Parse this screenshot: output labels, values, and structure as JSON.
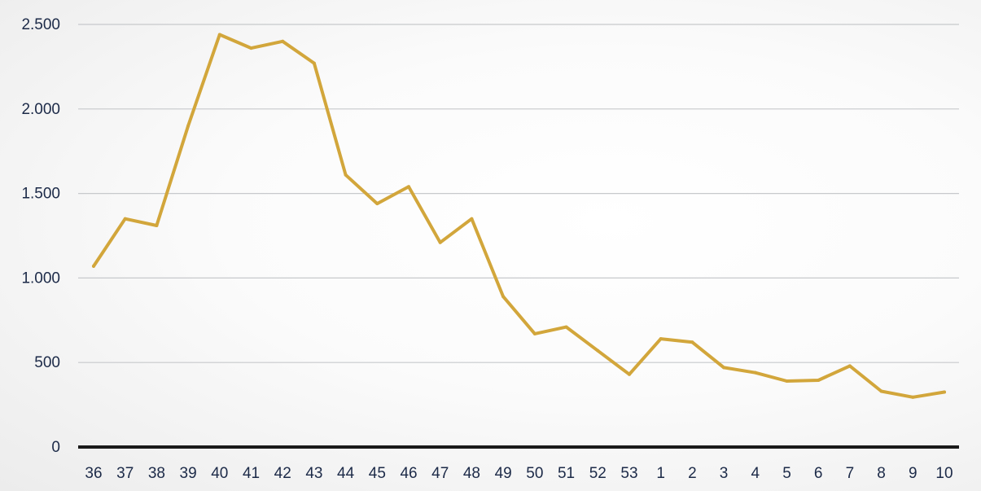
{
  "chart_data": {
    "type": "line",
    "title": "",
    "xlabel": "",
    "ylabel": "",
    "categories": [
      "36",
      "37",
      "38",
      "39",
      "40",
      "41",
      "42",
      "43",
      "44",
      "45",
      "46",
      "47",
      "48",
      "49",
      "50",
      "51",
      "52",
      "53",
      "1",
      "2",
      "3",
      "4",
      "5",
      "6",
      "7",
      "8",
      "9",
      "10"
    ],
    "series": [
      {
        "values": [
          1070,
          1350,
          1310,
          1900,
          2440,
          2360,
          2400,
          2270,
          1610,
          1440,
          1540,
          1210,
          1350,
          890,
          670,
          710,
          570,
          430,
          640,
          620,
          470,
          440,
          390,
          395,
          480,
          330,
          295,
          325
        ],
        "color": "#d2a63b"
      }
    ],
    "ylim": [
      0,
      2500
    ],
    "y_ticks": [
      0,
      500,
      1000,
      1500,
      2000,
      2500
    ],
    "y_tick_labels": [
      "0",
      "500",
      "1.000",
      "1.500",
      "2.000",
      "2.500"
    ],
    "grid": true,
    "legend": "none"
  }
}
